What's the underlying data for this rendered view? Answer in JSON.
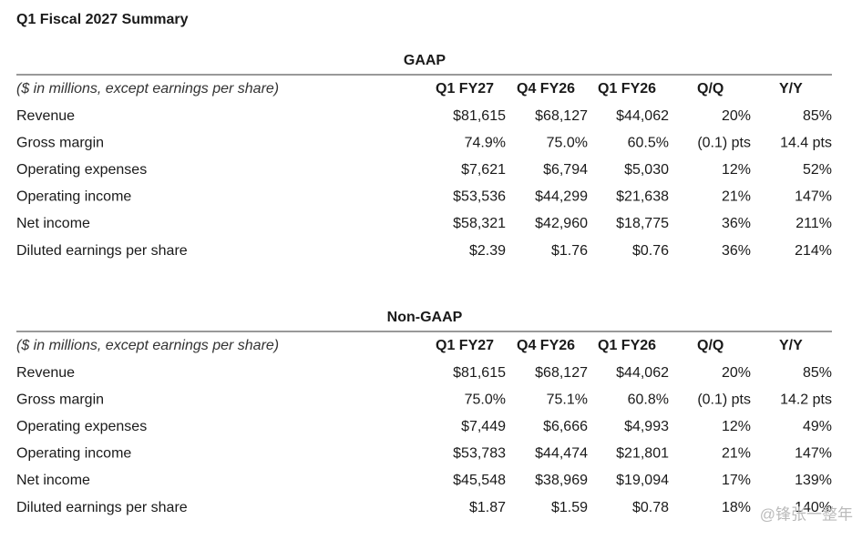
{
  "title": "Q1 Fiscal 2027 Summary",
  "sections": [
    {
      "heading": "GAAP",
      "caption": "($ in millions, except earnings per share)",
      "columns": [
        "Q1 FY27",
        "Q4 FY26",
        "Q1 FY26",
        "Q/Q",
        "Y/Y"
      ],
      "rows": [
        {
          "label": "Revenue",
          "values": [
            "$81,615",
            "$68,127",
            "$44,062",
            "20%",
            "85%"
          ]
        },
        {
          "label": "Gross margin",
          "values": [
            "74.9%",
            "75.0%",
            "60.5%",
            "(0.1) pts",
            "14.4 pts"
          ]
        },
        {
          "label": "Operating expenses",
          "values": [
            "$7,621",
            "$6,794",
            "$5,030",
            "12%",
            "52%"
          ]
        },
        {
          "label": "Operating income",
          "values": [
            "$53,536",
            "$44,299",
            "$21,638",
            "21%",
            "147%"
          ]
        },
        {
          "label": "Net income",
          "values": [
            "$58,321",
            "$42,960",
            "$18,775",
            "36%",
            "211%"
          ]
        },
        {
          "label": "Diluted earnings per share",
          "values": [
            "$2.39",
            "$1.76",
            "$0.76",
            "36%",
            "214%"
          ]
        }
      ]
    },
    {
      "heading": "Non-GAAP",
      "caption": "($ in millions, except earnings per share)",
      "columns": [
        "Q1 FY27",
        "Q4 FY26",
        "Q1 FY26",
        "Q/Q",
        "Y/Y"
      ],
      "rows": [
        {
          "label": "Revenue",
          "values": [
            "$81,615",
            "$68,127",
            "$44,062",
            "20%",
            "85%"
          ]
        },
        {
          "label": "Gross margin",
          "values": [
            "75.0%",
            "75.1%",
            "60.8%",
            "(0.1) pts",
            "14.2 pts"
          ]
        },
        {
          "label": "Operating expenses",
          "values": [
            "$7,449",
            "$6,666",
            "$4,993",
            "12%",
            "49%"
          ]
        },
        {
          "label": "Operating income",
          "values": [
            "$53,783",
            "$44,474",
            "$21,801",
            "21%",
            "147%"
          ]
        },
        {
          "label": "Net income",
          "values": [
            "$45,548",
            "$38,969",
            "$19,094",
            "17%",
            "139%"
          ]
        },
        {
          "label": "Diluted earnings per share",
          "values": [
            "$1.87",
            "$1.59",
            "$0.78",
            "18%",
            "140%"
          ]
        }
      ]
    }
  ],
  "watermark": "@锋张一整年"
}
